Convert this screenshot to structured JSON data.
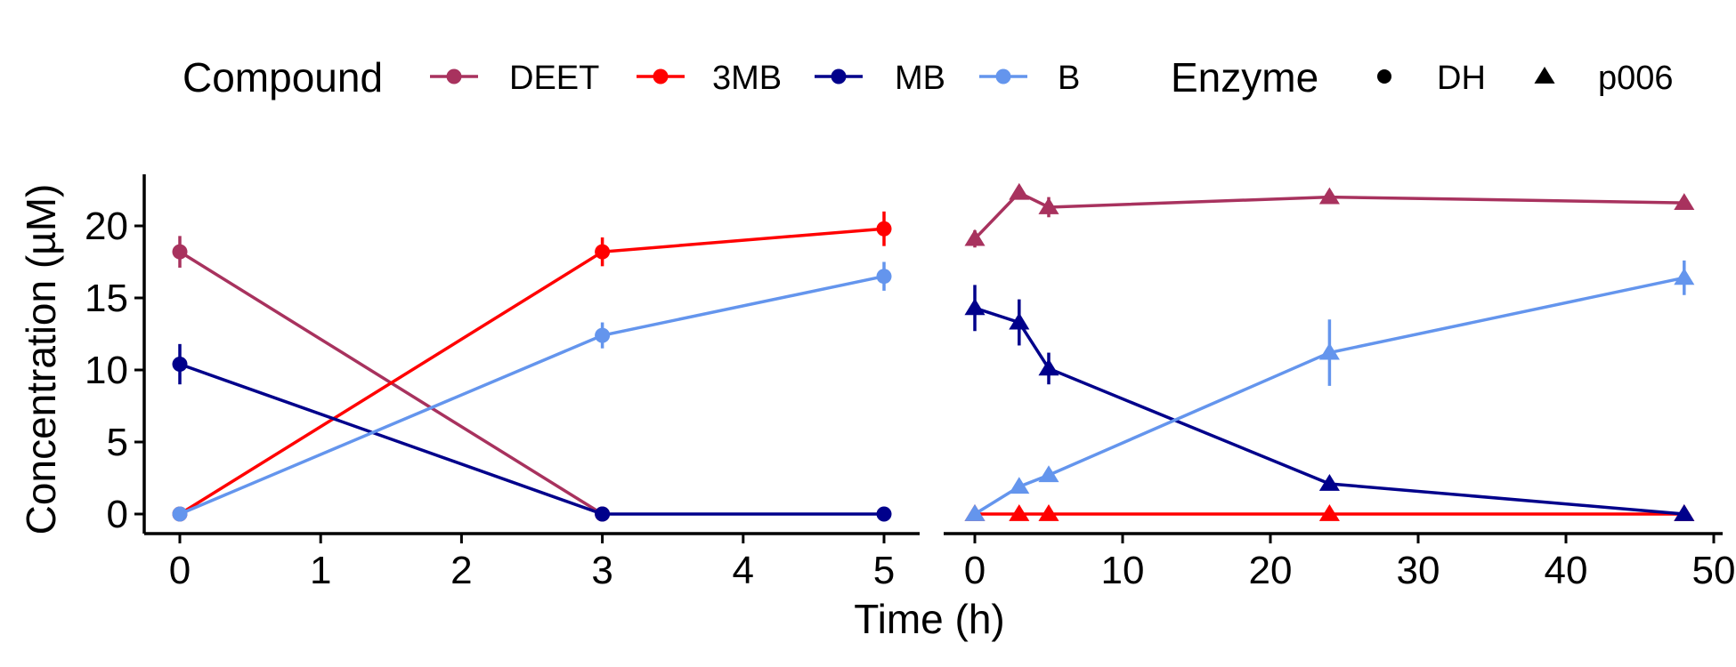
{
  "chart_data": [
    {
      "type": "line",
      "enzyme": "DH",
      "marker": "circle",
      "xlabel": "",
      "ylabel": "Concentration (µM)",
      "xlim": [
        -0.25,
        5.25
      ],
      "ylim": [
        -1.1,
        23.3
      ],
      "xticks": [
        0,
        1,
        2,
        3,
        4,
        5
      ],
      "xticklabels": [
        "0",
        "1",
        "2",
        "3",
        "4",
        "5"
      ],
      "yticks": [
        0,
        5,
        10,
        15,
        20
      ],
      "yticklabels": [
        "0",
        "5",
        "10",
        "15",
        "20"
      ],
      "grid": false,
      "series": [
        {
          "name": "DEET",
          "color": "#A8325E",
          "x": [
            0,
            3
          ],
          "y": [
            18.2,
            0
          ],
          "err": [
            1.1,
            0
          ]
        },
        {
          "name": "3MB",
          "color": "#FF0000",
          "x": [
            0,
            3,
            5
          ],
          "y": [
            0,
            18.2,
            19.8
          ],
          "err": [
            0,
            1.0,
            1.2
          ]
        },
        {
          "name": "MB",
          "color": "#00008B",
          "x": [
            0,
            3,
            5
          ],
          "y": [
            10.4,
            0,
            0
          ],
          "err": [
            1.4,
            0,
            0
          ]
        },
        {
          "name": "B",
          "color": "#6495ED",
          "x": [
            0,
            3,
            5
          ],
          "y": [
            0,
            12.4,
            16.5
          ],
          "err": [
            0,
            0.9,
            1.0
          ]
        }
      ]
    },
    {
      "type": "line",
      "enzyme": "p006",
      "marker": "triangle",
      "xlabel": "",
      "ylabel": "",
      "xlim": [
        -2.5,
        50.5
      ],
      "ylim": [
        -1.1,
        23.3
      ],
      "xticks": [
        0,
        10,
        20,
        30,
        40,
        50
      ],
      "xticklabels": [
        "0",
        "10",
        "20",
        "30",
        "40",
        "50"
      ],
      "grid": false,
      "series": [
        {
          "name": "DEET",
          "color": "#A8325E",
          "x": [
            0,
            3,
            5,
            24,
            48
          ],
          "y": [
            19.1,
            22.3,
            21.3,
            22.0,
            21.6
          ],
          "err": [
            0.6,
            0.3,
            0.7,
            0.3,
            0.4
          ]
        },
        {
          "name": "3MB",
          "color": "#FF0000",
          "x": [
            0,
            3,
            5,
            24,
            48
          ],
          "y": [
            0,
            0,
            0,
            0,
            0
          ],
          "err": [
            0,
            0,
            0,
            0,
            0
          ]
        },
        {
          "name": "MB",
          "color": "#00008B",
          "x": [
            0,
            3,
            5,
            24,
            48
          ],
          "y": [
            14.3,
            13.3,
            10.1,
            2.1,
            0
          ],
          "err": [
            1.6,
            1.6,
            1.1,
            0.3,
            0
          ]
        },
        {
          "name": "B",
          "color": "#6495ED",
          "x": [
            0,
            3,
            5,
            24,
            48
          ],
          "y": [
            0,
            1.9,
            2.7,
            11.2,
            16.4
          ],
          "err": [
            0,
            0.3,
            0.3,
            2.3,
            1.2
          ]
        }
      ]
    }
  ],
  "shared_xlabel": "Time (h)",
  "legend": {
    "position": "top",
    "compound_title": "Compound",
    "compounds": [
      {
        "label": "DEET",
        "color": "#A8325E"
      },
      {
        "label": "3MB",
        "color": "#FF0000"
      },
      {
        "label": "MB",
        "color": "#00008B"
      },
      {
        "label": "B",
        "color": "#6495ED"
      }
    ],
    "enzyme_title": "Enzyme",
    "enzymes": [
      {
        "label": "DH",
        "shape": "circle"
      },
      {
        "label": "p006",
        "shape": "triangle"
      }
    ]
  }
}
